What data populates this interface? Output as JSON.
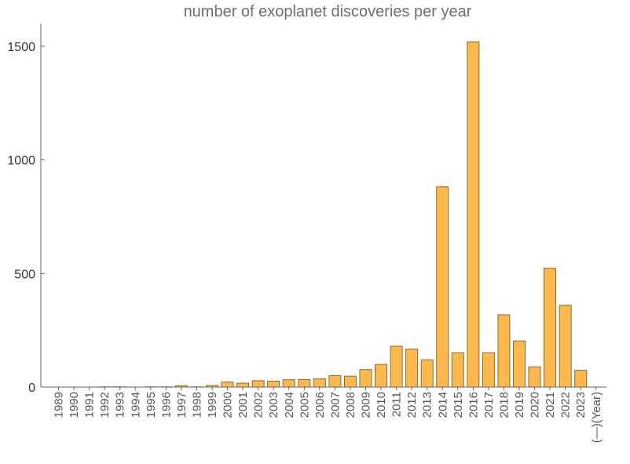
{
  "chart_data": {
    "type": "bar",
    "title": "number of exoplanet discoveries per year",
    "xlabel": "",
    "ylabel": "",
    "ylim": [
      0,
      1600
    ],
    "yticks": [
      0,
      500,
      1000,
      1500
    ],
    "grid": false,
    "colors": {
      "bar_fill": "#fdb94d",
      "bar_stroke": "#8a6a2e"
    },
    "categories": [
      "1989",
      "1990",
      "1991",
      "1992",
      "1993",
      "1994",
      "1995",
      "1996",
      "1997",
      "1998",
      "1999",
      "2000",
      "2001",
      "2002",
      "2003",
      "2004",
      "2005",
      "2006",
      "2007",
      "2008",
      "2009",
      "2010",
      "2011",
      "2012",
      "2013",
      "2014",
      "2015",
      "2016",
      "2017",
      "2018",
      "2019",
      "2020",
      "2021",
      "2022",
      "2023",
      "(—)(Year)"
    ],
    "values": [
      0,
      0,
      0,
      1,
      1,
      0,
      1,
      1,
      6,
      1,
      7,
      22,
      17,
      28,
      26,
      32,
      33,
      36,
      50,
      48,
      77,
      100,
      180,
      167,
      120,
      882,
      151,
      1520,
      151,
      318,
      203,
      89,
      523,
      360,
      74,
      0
    ]
  }
}
